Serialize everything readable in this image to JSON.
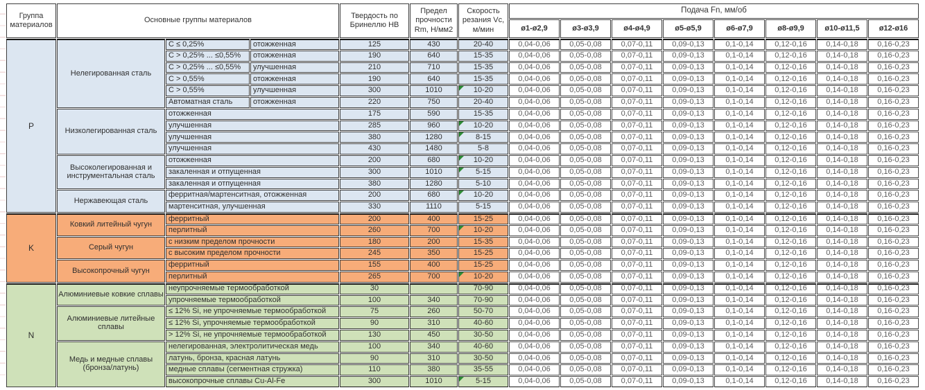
{
  "header": {
    "col_group": "Группа материалов",
    "col_materials": "Основные группы материалов",
    "col_hardness": "Твердость по Бринеллю HB",
    "col_strength": "Предел прочности Rm, Н/мм2",
    "col_speed": "Скорость резания Vc, м/мин",
    "feed_title": "Подача Fn, мм/об",
    "feed_cols": [
      "ø1-ø2,9",
      "ø3-ø3,9",
      "ø4-ø4,9",
      "ø5-ø5,9",
      "ø6-ø7,9",
      "ø8-ø9,9",
      "ø10-ø11,5",
      "ø12-ø16"
    ]
  },
  "feed_values": [
    "0,04-0,06",
    "0,05-0,08",
    "0,07-0,11",
    "0,09-0,13",
    "0,1-0,14",
    "0,12-0,16",
    "0,14-0,18",
    "0,16-0,23"
  ],
  "marker_color": "#2e8b36",
  "groups": [
    {
      "letter": "P",
      "color": "#dce6f1",
      "families": [
        {
          "name": "Нелегированная сталь",
          "rows": [
            {
              "spec": "C ≤ 0,25%",
              "state": "отожженная",
              "hb": "125",
              "rm": "430",
              "vc": "20-40",
              "marker": false
            },
            {
              "spec": "C > 0,25% ... ≤0,55%",
              "state": "отожженная",
              "hb": "190",
              "rm": "640",
              "vc": "15-35",
              "marker": false
            },
            {
              "spec": "C > 0,25% ... ≤0,55%",
              "state": "улучшенная",
              "hb": "210",
              "rm": "710",
              "vc": "15-35",
              "marker": false
            },
            {
              "spec": "C > 0,55%",
              "state": "отожженная",
              "hb": "190",
              "rm": "640",
              "vc": "15-35",
              "marker": false
            },
            {
              "spec": "C > 0,55%",
              "state": "улучшенная",
              "hb": "300",
              "rm": "1010",
              "vc": "10-20",
              "marker": true
            },
            {
              "spec": "Автоматная сталь",
              "state": "отожженная",
              "hb": "220",
              "rm": "750",
              "vc": "20-40",
              "marker": false
            }
          ]
        },
        {
          "name": "Низколегированная сталь",
          "rows": [
            {
              "spec": "отожженная",
              "state": null,
              "hb": "175",
              "rm": "590",
              "vc": "15-35",
              "marker": false
            },
            {
              "spec": "улучшенная",
              "state": null,
              "hb": "285",
              "rm": "960",
              "vc": "10-20",
              "marker": true
            },
            {
              "spec": "улучшенная",
              "state": null,
              "hb": "380",
              "rm": "1280",
              "vc": "8-15",
              "marker": true
            },
            {
              "spec": "улучшенная",
              "state": null,
              "hb": "430",
              "rm": "1480",
              "vc": "5-8",
              "marker": false
            }
          ]
        },
        {
          "name": "Высоколегированная и инструментальная сталь",
          "rows": [
            {
              "spec": "отожженная",
              "state": null,
              "hb": "200",
              "rm": "680",
              "vc": "10-20",
              "marker": true
            },
            {
              "spec": "закаленная и отпущенная",
              "state": null,
              "hb": "300",
              "rm": "1010",
              "vc": "5-15",
              "marker": true
            },
            {
              "spec": "закаленная и отпущенная",
              "state": null,
              "hb": "380",
              "rm": "1280",
              "vc": "5-10",
              "marker": false
            }
          ]
        },
        {
          "name": "Нержавеющая сталь",
          "rows": [
            {
              "spec": "ферритная/мартенситная, отожженная",
              "state": null,
              "hb": "200",
              "rm": "680",
              "vc": "10-20",
              "marker": true
            },
            {
              "spec": "мартенситная, улучшенная",
              "state": null,
              "hb": "330",
              "rm": "1110",
              "vc": "5-15",
              "marker": false
            }
          ]
        }
      ]
    },
    {
      "letter": "K",
      "color": "#f7ac79",
      "families": [
        {
          "name": "Ковкий литейный чугун",
          "rows": [
            {
              "spec": "ферритный",
              "state": null,
              "hb": "200",
              "rm": "400",
              "vc": "15-25",
              "marker": false
            },
            {
              "spec": "перлитный",
              "state": null,
              "hb": "260",
              "rm": "700",
              "vc": "10-20",
              "marker": true
            }
          ]
        },
        {
          "name": "Серый чугун",
          "rows": [
            {
              "spec": "с низким пределом прочности",
              "state": null,
              "hb": "180",
              "rm": "200",
              "vc": "15-35",
              "marker": false
            },
            {
              "spec": "с высоким пределом прочности",
              "state": null,
              "hb": "245",
              "rm": "350",
              "vc": "15-25",
              "marker": false
            }
          ]
        },
        {
          "name": "Высокопрочный чугун",
          "rows": [
            {
              "spec": "ферритный",
              "state": null,
              "hb": "155",
              "rm": "400",
              "vc": "15-25",
              "marker": false
            },
            {
              "spec": "перлитный",
              "state": null,
              "hb": "265",
              "rm": "700",
              "vc": "10-20",
              "marker": true
            }
          ]
        }
      ]
    },
    {
      "letter": "N",
      "color": "#cfe1b9",
      "families": [
        {
          "name": "Алюминиевые ковкие сплавы",
          "rows": [
            {
              "spec": "неупрочняемые термообработкой",
              "state": null,
              "hb": "30",
              "rm": "",
              "vc": "70-90",
              "marker": false
            },
            {
              "spec": "упрочняемые термообработкой",
              "state": null,
              "hb": "100",
              "rm": "340",
              "vc": "70-90",
              "marker": false
            }
          ]
        },
        {
          "name": "Алюминиевые литейные сплавы",
          "rows": [
            {
              "spec": "≤ 12% Si, не упрочняемые термообработкой",
              "state": null,
              "hb": "75",
              "rm": "260",
              "vc": "50-70",
              "marker": false
            },
            {
              "spec": "≤ 12% Si, упрочняемые термообработкой",
              "state": null,
              "hb": "90",
              "rm": "310",
              "vc": "40-60",
              "marker": false
            },
            {
              "spec": "> 12% Si, не упрочняемые термообработкой",
              "state": null,
              "hb": "130",
              "rm": "450",
              "vc": "30-50",
              "marker": false
            }
          ]
        },
        {
          "name": "Медь и медные сплавы (бронза/латунь)",
          "rows": [
            {
              "spec": "нелегированная, электролитическая медь",
              "state": null,
              "hb": "100",
              "rm": "340",
              "vc": "40-60",
              "marker": false
            },
            {
              "spec": "латунь, бронза, красная латунь",
              "state": null,
              "hb": "90",
              "rm": "310",
              "vc": "30-50",
              "marker": false
            },
            {
              "spec": "медные сплавы (сегментная стружка)",
              "state": null,
              "hb": "110",
              "rm": "380",
              "vc": "35-55",
              "marker": false
            },
            {
              "spec": "высокопрочные сплавы Cu-Al-Fe",
              "state": null,
              "hb": "300",
              "rm": "1010",
              "vc": "5-15",
              "marker": true
            }
          ]
        }
      ]
    }
  ]
}
